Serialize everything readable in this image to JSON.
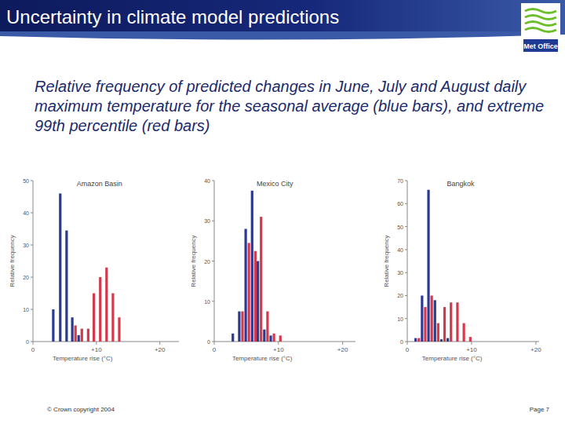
{
  "header": {
    "title": "Uncertainty in climate model predictions",
    "logo": "Met Office"
  },
  "description": "Relative frequency of predicted changes in June, July and August daily maximum temperature for the seasonal average (blue bars), and extreme 99th percentile (red bars)",
  "footer": {
    "copyright": "© Crown copyright 2004",
    "page": "Page 7"
  },
  "chart_data": [
    {
      "type": "bar",
      "title": "Amazon Basin",
      "x_label": "Temperature rise (°C)",
      "y_label": "Relative frequency",
      "xlim": [
        0,
        23
      ],
      "xticks": [
        0,
        {
          "value": 10,
          "label": "+10"
        },
        {
          "value": 20,
          "label": "+20"
        }
      ],
      "ylim": [
        0,
        50
      ],
      "yticks": [
        0,
        10,
        20,
        30,
        40,
        50
      ],
      "series": [
        {
          "color": "#2b3a91",
          "x": [
            3.2,
            4.3,
            5.3,
            6.2,
            7.2
          ],
          "values": [
            10,
            46,
            34.5,
            7.5,
            2
          ]
        },
        {
          "color": "#d3394a",
          "x": [
            6.7,
            7.7,
            8.7,
            9.6,
            10.6,
            11.6,
            12.6,
            13.6
          ],
          "values": [
            5,
            4,
            4,
            15,
            20,
            23,
            15,
            7.5
          ]
        }
      ]
    },
    {
      "type": "bar",
      "title": "Mexico City",
      "x_label": "Temperature rise (°C)",
      "y_label": "Relative frequency",
      "xlim": [
        0,
        22
      ],
      "xticks": [
        0,
        {
          "value": 10,
          "label": "+10"
        },
        {
          "value": 20,
          "label": "+20"
        }
      ],
      "ylim": [
        0,
        40
      ],
      "yticks": [
        0,
        10,
        20,
        30,
        40
      ],
      "series": [
        {
          "color": "#2b3a91",
          "x": [
            2.9,
            3.9,
            4.9,
            5.9,
            6.8,
            7.8,
            8.8
          ],
          "values": [
            2,
            7.5,
            28,
            37.5,
            20,
            3,
            1.5
          ]
        },
        {
          "color": "#d3394a",
          "x": [
            4.4,
            5.4,
            6.4,
            7.3,
            8.3,
            9.3,
            10.3
          ],
          "values": [
            7.5,
            24.5,
            22.5,
            31,
            7.5,
            2,
            1.5
          ]
        }
      ]
    },
    {
      "type": "bar",
      "title": "Bangkok",
      "x_label": "Temperature rise (°C)",
      "y_label": "Relative frequency",
      "xlim": [
        0,
        20.5
      ],
      "xticks": [
        0,
        {
          "value": 10,
          "label": "+10"
        },
        {
          "value": 20,
          "label": "+20"
        }
      ],
      "ylim": [
        0,
        70
      ],
      "yticks": [
        0,
        10,
        20,
        30,
        40,
        50,
        60,
        70
      ],
      "series": [
        {
          "color": "#2b3a91",
          "x": [
            1.3,
            2.3,
            3.3,
            4.3,
            5.3,
            6.3
          ],
          "values": [
            1.5,
            20,
            66,
            18,
            1,
            1.5
          ]
        },
        {
          "color": "#d3394a",
          "x": [
            1.8,
            2.8,
            3.8,
            4.8,
            5.8,
            6.8,
            7.8,
            8.8,
            9.8
          ],
          "values": [
            1.5,
            15,
            20,
            8,
            15,
            17,
            17,
            8,
            2
          ]
        }
      ]
    }
  ]
}
